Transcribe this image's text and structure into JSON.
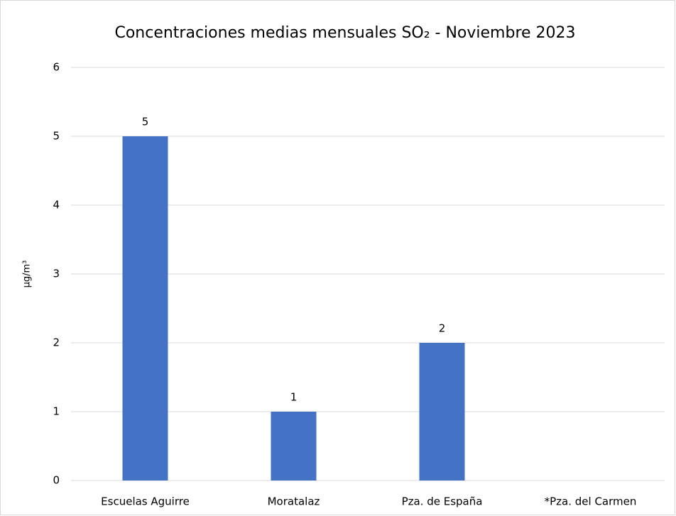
{
  "chart_data": {
    "type": "bar",
    "title": "Concentraciones medias mensuales SO₂ - Noviembre 2023",
    "y_label": "µg/m³",
    "categories": [
      "Escuelas Aguirre",
      "Moratalaz",
      "Pza. de España",
      "*Pza. del Carmen"
    ],
    "values": [
      5,
      1,
      2,
      null
    ],
    "color": "#4472c4",
    "ylim": [
      0,
      6
    ],
    "yticks": [
      0,
      1,
      2,
      3,
      4,
      5,
      6
    ],
    "grid": true,
    "data_labels": true
  }
}
